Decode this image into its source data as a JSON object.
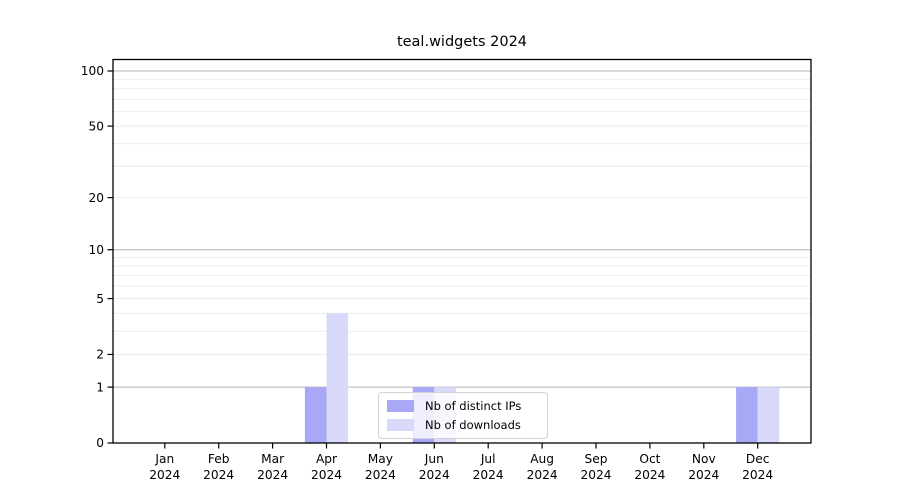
{
  "title": "teal.widgets 2024",
  "chart_data": {
    "type": "bar",
    "title": "teal.widgets 2024",
    "x_categories": [
      "Jan",
      "Feb",
      "Mar",
      "Apr",
      "May",
      "Jun",
      "Jul",
      "Aug",
      "Sep",
      "Oct",
      "Nov",
      "Dec"
    ],
    "x_year": "2024",
    "series": [
      {
        "name": "Nb of distinct IPs",
        "color": "#a8a8f7",
        "values": [
          0,
          0,
          0,
          1,
          0,
          1,
          0,
          0,
          0,
          0,
          0,
          1
        ]
      },
      {
        "name": "Nb of downloads",
        "color": "#d9d9fb",
        "values": [
          0,
          0,
          0,
          4,
          0,
          1,
          0,
          0,
          0,
          0,
          0,
          1
        ]
      }
    ],
    "y_axis": {
      "scale": "log1p",
      "tick_values": [
        0,
        1,
        2,
        5,
        10,
        20,
        50,
        100
      ],
      "major_gridlines": [
        1,
        10,
        100
      ],
      "minor_gridlines": [
        2,
        3,
        4,
        5,
        6,
        7,
        8,
        9,
        20,
        30,
        40,
        50,
        60,
        70,
        80,
        90
      ],
      "ylim": [
        0,
        115
      ]
    },
    "grid": true,
    "legend_position": "lower-center-inside"
  },
  "colors": {
    "major_grid": "#b5b5b5",
    "minor_grid": "#e8e8e8",
    "spine": "#000000",
    "tick_label": "#000000",
    "background": "#ffffff"
  }
}
